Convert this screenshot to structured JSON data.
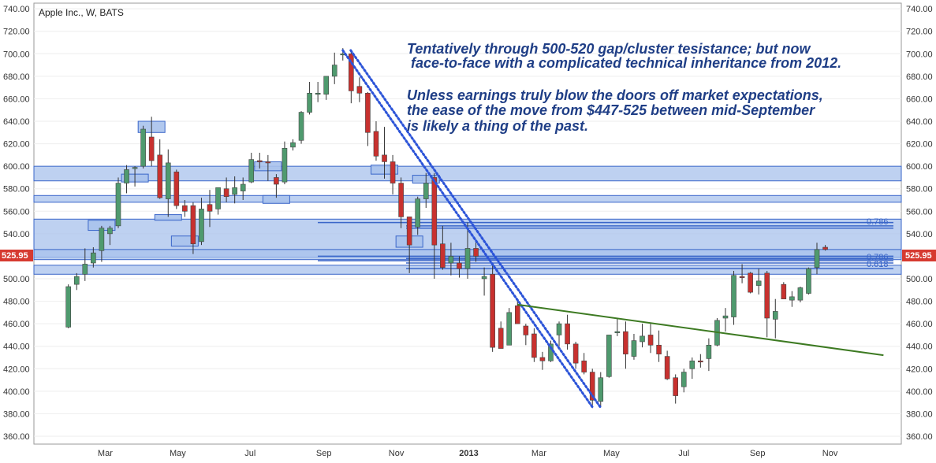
{
  "header": {
    "title": "Apple Inc., W, BATS"
  },
  "annotations": [
    "Tentatively through 500-520 gap/cluster tesistance; but now",
    " face-to-face with a complicated technical inheritance from 2012.",
    "Unless earnings truly blow the doors off market expectations,",
    "the ease of the move from $447-525 between mid-September",
    "is likely a thing of the past."
  ],
  "fib_labels": [
    "0.786",
    "0.786",
    "0.618"
  ],
  "price_badge": "525.95",
  "colors": {
    "up": "#4f9a6e",
    "down": "#c8312f",
    "zone_fill": "#a8c2ec",
    "zone_stroke": "#3a66c9",
    "trend_green": "#3d7a22",
    "dots": "#2c54d8",
    "annotation": "#1f3e86",
    "badge": "#d63a30"
  },
  "chart_data": {
    "type": "candlestick",
    "title": "Apple Inc., W, BATS",
    "y_ticks": [
      "740.00",
      "720.00",
      "700.00",
      "680.00",
      "660.00",
      "640.00",
      "620.00",
      "600.00",
      "580.00",
      "560.00",
      "540.00",
      "520.00",
      "500.00",
      "480.00",
      "460.00",
      "440.00",
      "420.00",
      "400.00",
      "380.00",
      "360.00"
    ],
    "x_ticks": [
      "Mar",
      "May",
      "Jul",
      "Sep",
      "Nov",
      "2013",
      "Mar",
      "May",
      "Jul",
      "Sep",
      "Nov"
    ],
    "ylim": [
      353,
      745
    ],
    "last_price": 525.95,
    "candles": [
      {
        "date": "2012-01-30",
        "open": 457,
        "high": 495,
        "low": 456,
        "close": 493
      },
      {
        "date": "2012-02-06",
        "open": 495,
        "high": 505,
        "low": 490,
        "close": 502
      },
      {
        "date": "2012-02-13",
        "open": 504,
        "high": 527,
        "low": 498,
        "close": 513
      },
      {
        "date": "2012-02-20",
        "open": 514,
        "high": 528,
        "low": 510,
        "close": 523
      },
      {
        "date": "2012-02-27",
        "open": 525,
        "high": 547,
        "low": 515,
        "close": 545
      },
      {
        "date": "2012-03-05",
        "open": 540,
        "high": 547,
        "low": 530,
        "close": 545
      },
      {
        "date": "2012-03-12",
        "open": 547,
        "high": 590,
        "low": 545,
        "close": 585
      },
      {
        "date": "2012-03-19",
        "open": 585,
        "high": 601,
        "low": 576,
        "close": 597
      },
      {
        "date": "2012-03-26",
        "open": 598,
        "high": 600,
        "low": 582,
        "close": 599
      },
      {
        "date": "2012-04-02",
        "open": 600,
        "high": 636,
        "low": 598,
        "close": 633
      },
      {
        "date": "2012-04-09",
        "open": 626,
        "high": 644,
        "low": 600,
        "close": 605
      },
      {
        "date": "2012-04-16",
        "open": 610,
        "high": 624,
        "low": 571,
        "close": 572
      },
      {
        "date": "2012-04-23",
        "open": 571,
        "high": 615,
        "low": 555,
        "close": 603
      },
      {
        "date": "2012-04-30",
        "open": 595,
        "high": 597,
        "low": 562,
        "close": 565
      },
      {
        "date": "2012-05-07",
        "open": 565,
        "high": 570,
        "low": 555,
        "close": 560
      },
      {
        "date": "2012-05-14",
        "open": 565,
        "high": 568,
        "low": 522,
        "close": 531
      },
      {
        "date": "2012-05-21",
        "open": 533,
        "high": 572,
        "low": 530,
        "close": 562
      },
      {
        "date": "2012-05-28",
        "open": 566,
        "high": 579,
        "low": 546,
        "close": 560
      },
      {
        "date": "2012-06-04",
        "open": 562,
        "high": 581,
        "low": 557,
        "close": 581
      },
      {
        "date": "2012-06-11",
        "open": 580,
        "high": 590,
        "low": 568,
        "close": 573
      },
      {
        "date": "2012-06-18",
        "open": 575,
        "high": 591,
        "low": 567,
        "close": 581
      },
      {
        "date": "2012-06-25",
        "open": 578,
        "high": 590,
        "low": 570,
        "close": 584
      },
      {
        "date": "2012-07-02",
        "open": 586,
        "high": 612,
        "low": 585,
        "close": 606
      },
      {
        "date": "2012-07-09",
        "open": 605,
        "high": 612,
        "low": 598,
        "close": 604
      },
      {
        "date": "2012-07-16",
        "open": 604,
        "high": 610,
        "low": 587,
        "close": 603
      },
      {
        "date": "2012-07-23",
        "open": 590,
        "high": 593,
        "low": 572,
        "close": 584
      },
      {
        "date": "2012-07-30",
        "open": 586,
        "high": 622,
        "low": 584,
        "close": 616
      },
      {
        "date": "2012-08-06",
        "open": 617,
        "high": 624,
        "low": 614,
        "close": 621
      },
      {
        "date": "2012-08-13",
        "open": 623,
        "high": 649,
        "low": 620,
        "close": 648
      },
      {
        "date": "2012-08-20",
        "open": 648,
        "high": 675,
        "low": 646,
        "close": 665
      },
      {
        "date": "2012-08-27",
        "open": 665,
        "high": 675,
        "low": 657,
        "close": 665
      },
      {
        "date": "2012-09-03",
        "open": 664,
        "high": 677,
        "low": 659,
        "close": 680
      },
      {
        "date": "2012-09-10",
        "open": 680,
        "high": 701,
        "low": 673,
        "close": 690
      },
      {
        "date": "2012-09-17",
        "open": 699,
        "high": 705,
        "low": 694,
        "close": 700
      },
      {
        "date": "2012-09-24",
        "open": 700,
        "high": 702,
        "low": 656,
        "close": 667
      },
      {
        "date": "2012-10-01",
        "open": 671,
        "high": 679,
        "low": 657,
        "close": 665
      },
      {
        "date": "2012-10-08",
        "open": 665,
        "high": 666,
        "low": 618,
        "close": 630
      },
      {
        "date": "2012-10-15",
        "open": 631,
        "high": 640,
        "low": 605,
        "close": 609
      },
      {
        "date": "2012-10-22",
        "open": 610,
        "high": 635,
        "low": 589,
        "close": 604
      },
      {
        "date": "2012-10-29",
        "open": 604,
        "high": 610,
        "low": 575,
        "close": 585
      },
      {
        "date": "2012-11-05",
        "open": 585,
        "high": 590,
        "low": 545,
        "close": 555
      },
      {
        "date": "2012-11-12",
        "open": 555,
        "high": 555,
        "low": 505,
        "close": 530
      },
      {
        "date": "2012-11-19",
        "open": 546,
        "high": 573,
        "low": 539,
        "close": 571
      },
      {
        "date": "2012-11-26",
        "open": 571,
        "high": 594,
        "low": 563,
        "close": 585
      },
      {
        "date": "2012-12-03",
        "open": 590,
        "high": 594,
        "low": 500,
        "close": 530
      },
      {
        "date": "2012-12-10",
        "open": 531,
        "high": 547,
        "low": 508,
        "close": 510
      },
      {
        "date": "2012-12-17",
        "open": 514,
        "high": 532,
        "low": 503,
        "close": 520
      },
      {
        "date": "2012-12-24",
        "open": 514,
        "high": 520,
        "low": 501,
        "close": 509
      },
      {
        "date": "2012-12-31",
        "open": 509,
        "high": 550,
        "low": 500,
        "close": 527
      },
      {
        "date": "2013-01-07",
        "open": 527,
        "high": 534,
        "low": 515,
        "close": 520
      },
      {
        "date": "2013-01-14",
        "open": 500,
        "high": 510,
        "low": 485,
        "close": 502
      },
      {
        "date": "2013-01-21",
        "open": 504,
        "high": 512,
        "low": 435,
        "close": 439
      },
      {
        "date": "2013-01-28",
        "open": 456,
        "high": 462,
        "low": 441,
        "close": 438
      },
      {
        "date": "2013-02-04",
        "open": 441,
        "high": 474,
        "low": 441,
        "close": 470
      },
      {
        "date": "2013-02-11",
        "open": 476,
        "high": 480,
        "low": 462,
        "close": 460
      },
      {
        "date": "2013-02-18",
        "open": 458,
        "high": 460,
        "low": 441,
        "close": 450
      },
      {
        "date": "2013-02-25",
        "open": 451,
        "high": 456,
        "low": 426,
        "close": 430
      },
      {
        "date": "2013-03-04",
        "open": 430,
        "high": 435,
        "low": 419,
        "close": 427
      },
      {
        "date": "2013-03-11",
        "open": 427,
        "high": 445,
        "low": 426,
        "close": 442
      },
      {
        "date": "2013-03-18",
        "open": 450,
        "high": 462,
        "low": 440,
        "close": 460
      },
      {
        "date": "2013-03-25",
        "open": 460,
        "high": 468,
        "low": 437,
        "close": 442
      },
      {
        "date": "2013-04-01",
        "open": 442,
        "high": 444,
        "low": 420,
        "close": 425
      },
      {
        "date": "2013-04-08",
        "open": 427,
        "high": 434,
        "low": 415,
        "close": 417
      },
      {
        "date": "2013-04-15",
        "open": 417,
        "high": 420,
        "low": 385,
        "close": 392
      },
      {
        "date": "2013-04-22",
        "open": 391,
        "high": 417,
        "low": 386,
        "close": 412
      },
      {
        "date": "2013-04-29",
        "open": 413,
        "high": 450,
        "low": 412,
        "close": 450
      },
      {
        "date": "2013-05-06",
        "open": 452,
        "high": 465,
        "low": 449,
        "close": 453
      },
      {
        "date": "2013-05-13",
        "open": 453,
        "high": 462,
        "low": 420,
        "close": 433
      },
      {
        "date": "2013-05-20",
        "open": 431,
        "high": 451,
        "low": 428,
        "close": 445
      },
      {
        "date": "2013-05-27",
        "open": 444,
        "high": 460,
        "low": 439,
        "close": 449
      },
      {
        "date": "2013-06-03",
        "open": 450,
        "high": 460,
        "low": 434,
        "close": 441
      },
      {
        "date": "2013-06-10",
        "open": 441,
        "high": 454,
        "low": 426,
        "close": 433
      },
      {
        "date": "2013-06-17",
        "open": 431,
        "high": 436,
        "low": 410,
        "close": 411
      },
      {
        "date": "2013-06-24",
        "open": 412,
        "high": 415,
        "low": 389,
        "close": 396
      },
      {
        "date": "2013-07-01",
        "open": 404,
        "high": 420,
        "low": 399,
        "close": 417
      },
      {
        "date": "2013-07-08",
        "open": 420,
        "high": 430,
        "low": 411,
        "close": 427
      },
      {
        "date": "2013-07-15",
        "open": 427,
        "high": 433,
        "low": 421,
        "close": 426
      },
      {
        "date": "2013-07-22",
        "open": 429,
        "high": 447,
        "low": 418,
        "close": 441
      },
      {
        "date": "2013-07-29",
        "open": 441,
        "high": 465,
        "low": 440,
        "close": 463
      },
      {
        "date": "2013-08-05",
        "open": 465,
        "high": 474,
        "low": 453,
        "close": 467
      },
      {
        "date": "2013-08-12",
        "open": 466,
        "high": 507,
        "low": 459,
        "close": 503
      },
      {
        "date": "2013-08-19",
        "open": 502,
        "high": 513,
        "low": 496,
        "close": 501
      },
      {
        "date": "2013-08-26",
        "open": 505,
        "high": 506,
        "low": 487,
        "close": 488
      },
      {
        "date": "2013-09-02",
        "open": 494,
        "high": 509,
        "low": 486,
        "close": 498
      },
      {
        "date": "2013-09-09",
        "open": 505,
        "high": 507,
        "low": 448,
        "close": 465
      },
      {
        "date": "2013-09-16",
        "open": 464,
        "high": 482,
        "low": 447,
        "close": 471
      },
      {
        "date": "2013-09-23",
        "open": 495,
        "high": 497,
        "low": 482,
        "close": 482
      },
      {
        "date": "2013-09-30",
        "open": 481,
        "high": 489,
        "low": 475,
        "close": 484
      },
      {
        "date": "2013-10-07",
        "open": 481,
        "high": 493,
        "low": 479,
        "close": 492
      },
      {
        "date": "2013-10-14",
        "open": 487,
        "high": 510,
        "low": 486,
        "close": 509
      },
      {
        "date": "2013-10-21",
        "open": 510,
        "high": 532,
        "low": 504,
        "close": 526
      },
      {
        "date": "2013-10-28",
        "open": 528,
        "high": 530,
        "low": 525,
        "close": 526
      }
    ],
    "zones": [
      {
        "y1": 519,
        "y2": 553
      },
      {
        "y1": 587,
        "y2": 600
      },
      {
        "y1": 568,
        "y2": 574
      },
      {
        "y1": 504,
        "y2": 512
      },
      {
        "y1": 517,
        "y2": 526
      }
    ],
    "small_boxes": [
      {
        "date": "2012-02-27",
        "y1": 543,
        "y2": 552
      },
      {
        "date": "2012-03-26",
        "y1": 586,
        "y2": 593
      },
      {
        "date": "2012-04-09",
        "y1": 630,
        "y2": 640
      },
      {
        "date": "2012-04-23",
        "y1": 552,
        "y2": 557
      },
      {
        "date": "2012-05-07",
        "y1": 529,
        "y2": 538
      },
      {
        "date": "2012-07-16",
        "y1": 596,
        "y2": 604
      },
      {
        "date": "2012-07-23",
        "y1": 567,
        "y2": 574
      },
      {
        "date": "2012-10-22",
        "y1": 593,
        "y2": 601
      },
      {
        "date": "2012-11-12",
        "y1": 528,
        "y2": 538
      },
      {
        "date": "2012-11-26",
        "y1": 585,
        "y2": 592
      }
    ],
    "levels": [
      {
        "y": 550,
        "fib": "0.786"
      },
      {
        "y": 547
      },
      {
        "y": 545
      },
      {
        "y": 520,
        "fib": "0.786"
      },
      {
        "y": 518
      },
      {
        "y": 516,
        "fib": "0.618"
      },
      {
        "y": 514
      },
      {
        "y": 509
      }
    ],
    "downtrend": [
      {
        "date": "2012-09-17",
        "price": 703
      },
      {
        "date": "2013-04-15",
        "price": 386
      }
    ],
    "green_trend": [
      {
        "date": "2013-02-11",
        "price": 477
      },
      {
        "date": "2013-12-16",
        "price": 432
      }
    ]
  }
}
